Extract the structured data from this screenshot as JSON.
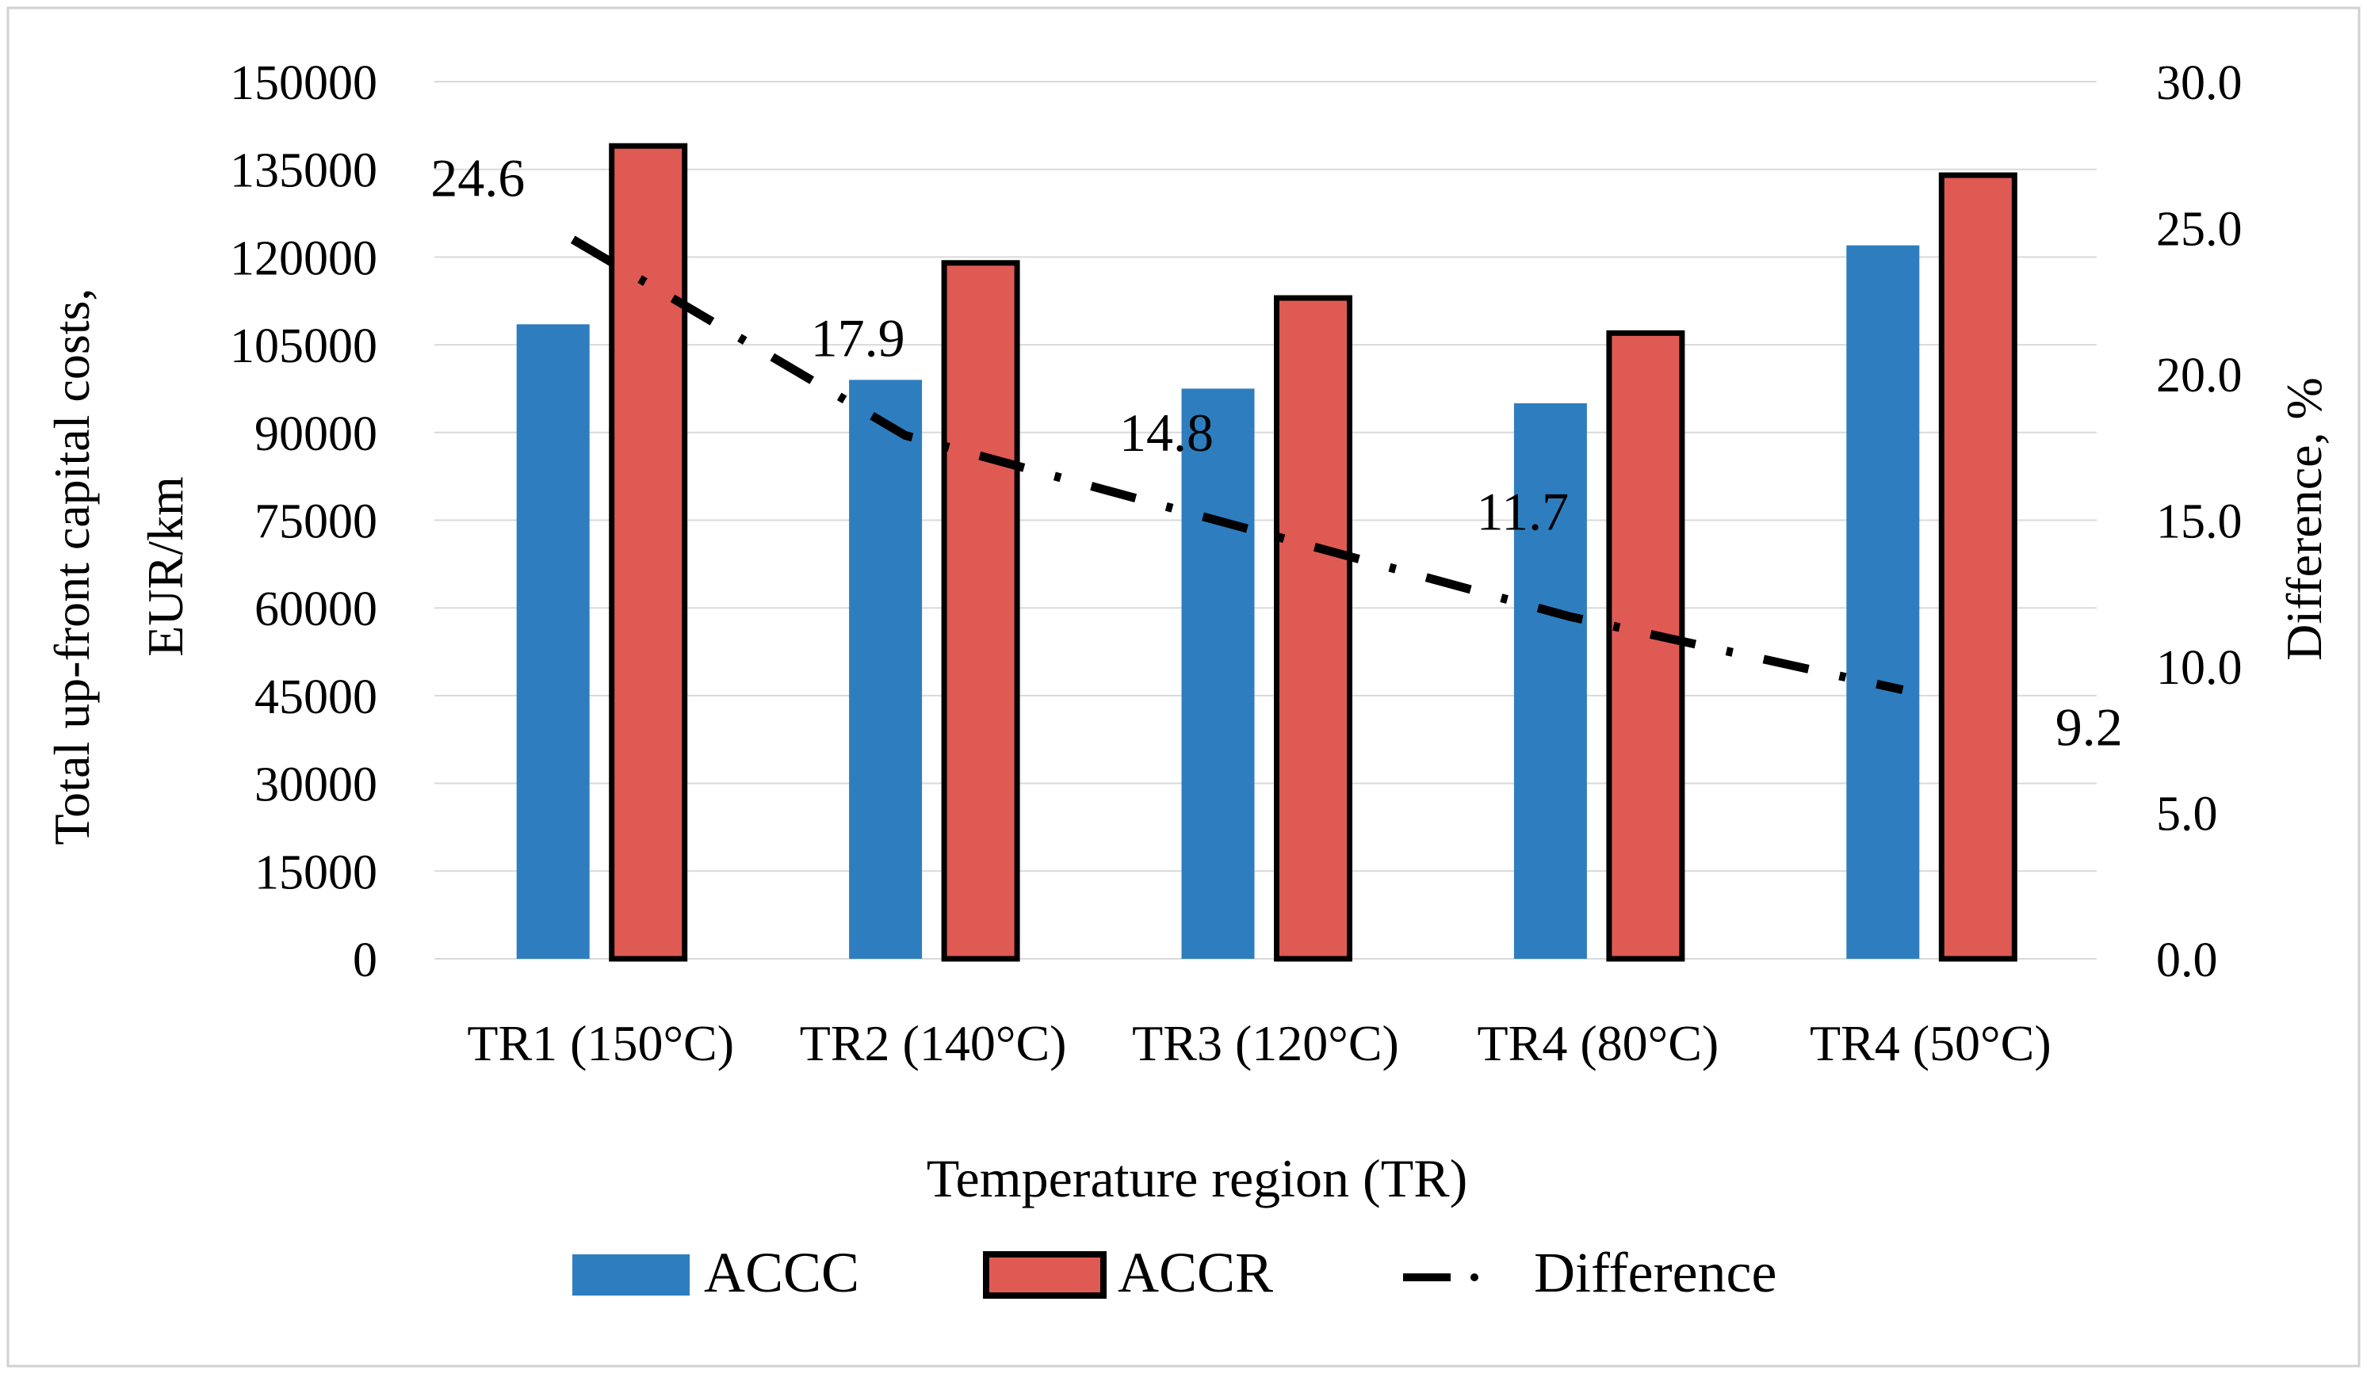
{
  "chart_data": {
    "type": "bar",
    "title": "",
    "categories": [
      "TR1 (150°C)",
      "TR2 (140°C)",
      "TR3 (120°C)",
      "TR4 (80°C)",
      "TR4 (50°C)"
    ],
    "series": [
      {
        "name": "ACCC",
        "kind": "bar",
        "axis": "left",
        "color": "#2E7EBF",
        "values": [
          108500,
          99000,
          97500,
          95000,
          122000
        ]
      },
      {
        "name": "ACCR",
        "kind": "bar",
        "axis": "left",
        "color": "#E05A54",
        "outline": "#000000",
        "values": [
          139000,
          119000,
          113000,
          107000,
          134000
        ]
      },
      {
        "name": "Difference",
        "kind": "line",
        "axis": "right",
        "color": "#000000",
        "line_style": "dash-dot",
        "values": [
          24.6,
          17.9,
          14.8,
          11.7,
          9.2
        ],
        "data_labels": [
          "24.6",
          "17.9",
          "14.8",
          "11.7",
          "9.2"
        ]
      }
    ],
    "xlabel": "Temperature region (TR)",
    "ylabel": "Total up-front capital costs, EUR/km",
    "ylabel_lines": [
      "Total up-front capital costs,",
      "EUR/km"
    ],
    "ylim": [
      0,
      150000
    ],
    "yticks": [
      "0",
      "15000",
      "30000",
      "45000",
      "60000",
      "75000",
      "90000",
      "105000",
      "120000",
      "135000",
      "150000"
    ],
    "y2label": "Difference, %",
    "y2lim": [
      0,
      30
    ],
    "y2ticks": [
      "0.0",
      "5.0",
      "10.0",
      "15.0",
      "20.0",
      "25.0",
      "30.0"
    ],
    "grid": true,
    "legend": {
      "position": "bottom",
      "entries": [
        "ACCC",
        "ACCR",
        "Difference"
      ]
    }
  }
}
